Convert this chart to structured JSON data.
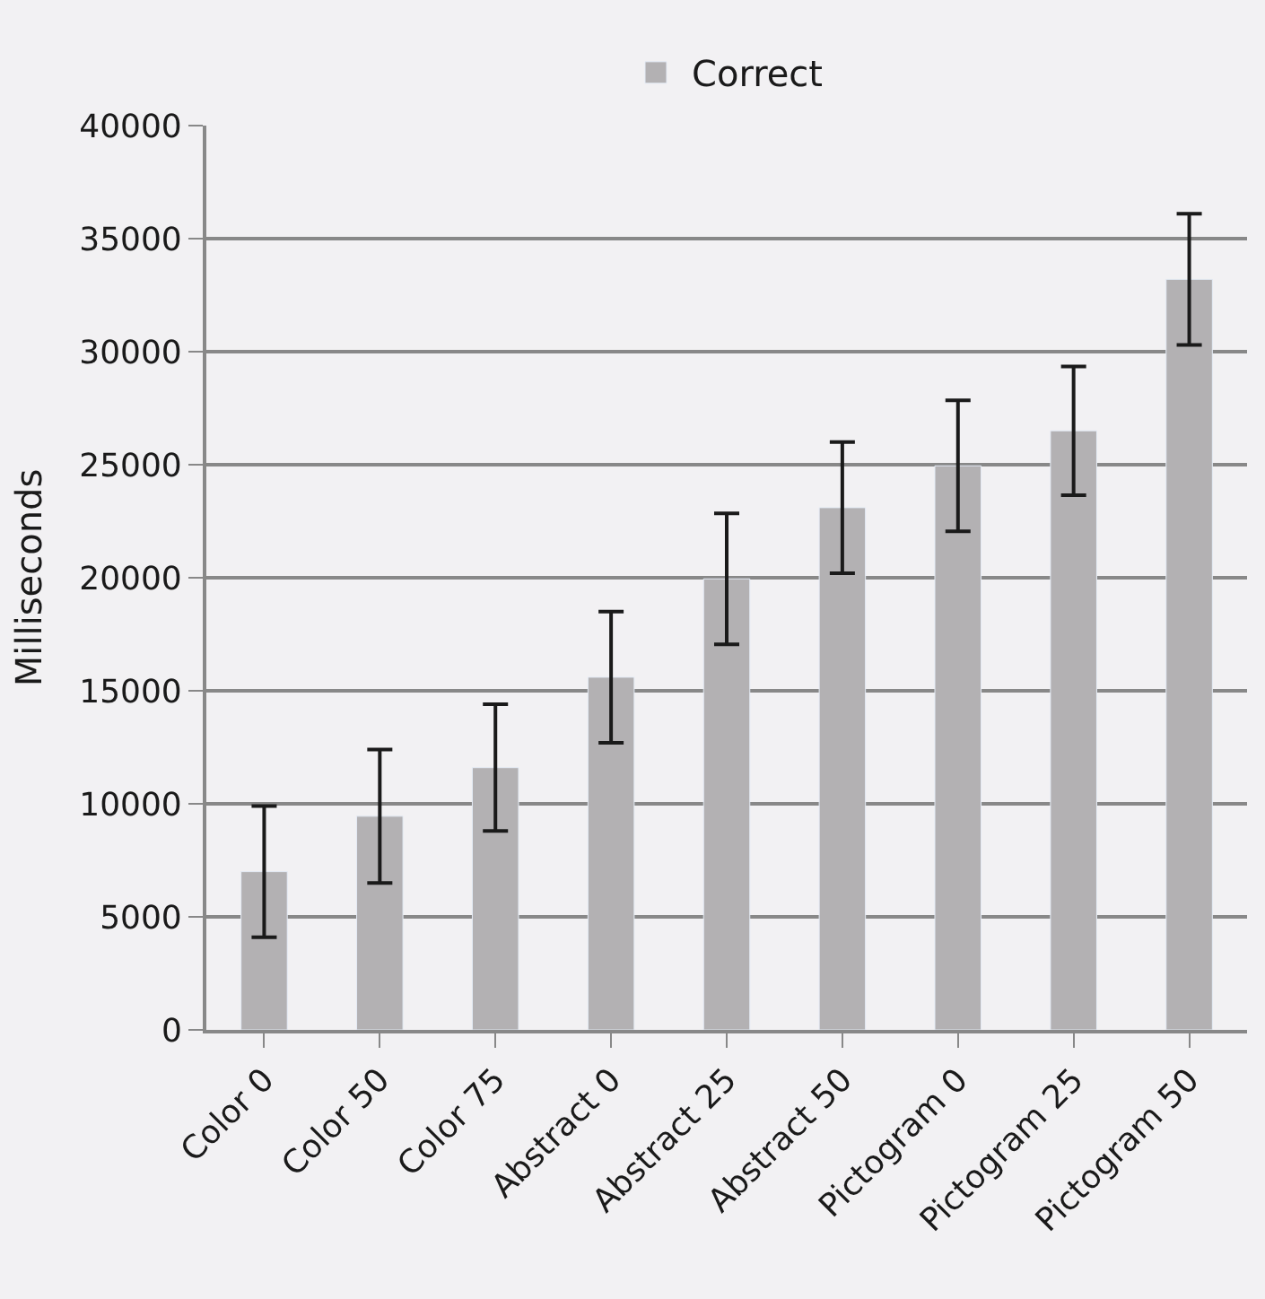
{
  "chart_data": {
    "type": "bar",
    "ylabel": "Milliseconds",
    "categories": [
      "Color 0",
      "Color 50",
      "Color 75",
      "Abstract 0",
      "Abstract 25",
      "Abstract 50",
      "Pictogram 0",
      "Pictogram 25",
      "Pictogram 50"
    ],
    "series": [
      {
        "name": "Correct",
        "color": "#b3b1b3",
        "values": [
          7000,
          9450,
          11600,
          15600,
          19950,
          23100,
          24950,
          26500,
          33200
        ],
        "errors": [
          2900,
          2950,
          2800,
          2900,
          2900,
          2900,
          2900,
          2850,
          2900
        ]
      }
    ],
    "ylim": [
      0,
      40000
    ],
    "yticks": [
      0,
      5000,
      10000,
      15000,
      20000,
      25000,
      30000,
      35000,
      40000
    ],
    "grid": "y",
    "legend": "top"
  }
}
